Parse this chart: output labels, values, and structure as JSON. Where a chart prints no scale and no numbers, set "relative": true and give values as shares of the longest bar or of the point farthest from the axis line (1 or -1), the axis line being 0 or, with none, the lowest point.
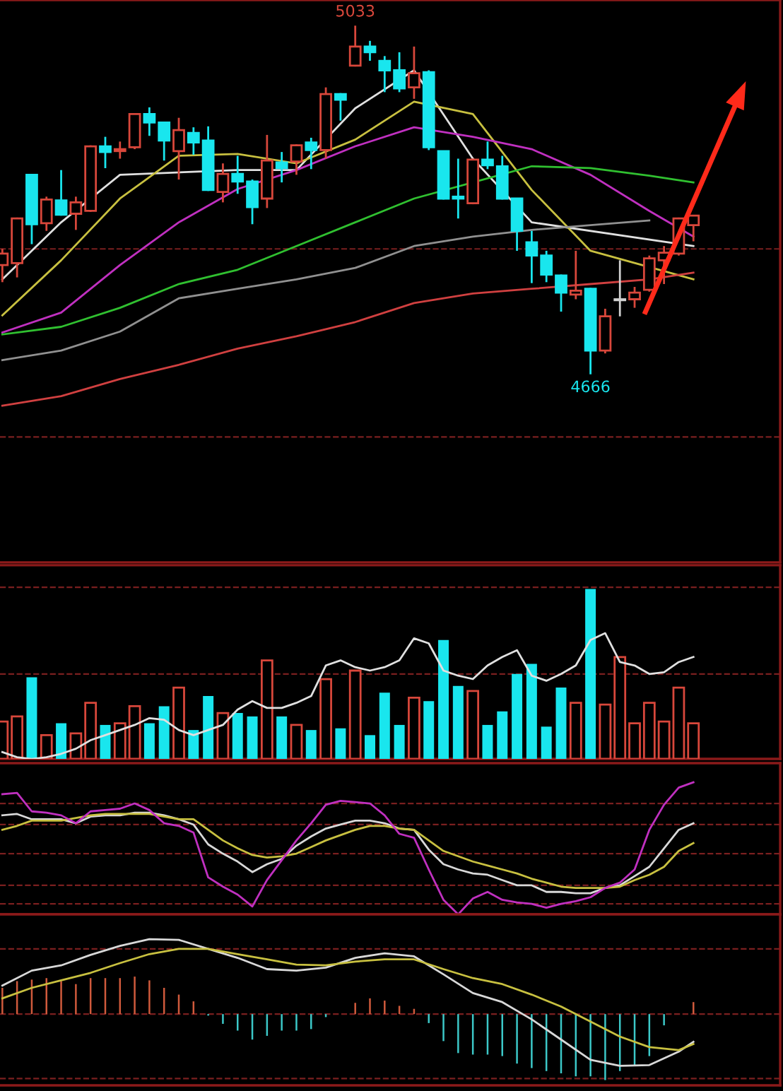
{
  "chart_data": [
    {
      "type": "candlestick",
      "tick_labels": false,
      "ylim": [
        4468,
        5060
      ],
      "categories": [
        null,
        null,
        null,
        null,
        null,
        null,
        null,
        null,
        null,
        null,
        null,
        null,
        null,
        null,
        null,
        null,
        null,
        null,
        null,
        null,
        null,
        null,
        null,
        null,
        null,
        null,
        null,
        null,
        null,
        null,
        null,
        null,
        null,
        null,
        null,
        null,
        null,
        null,
        null,
        null,
        null,
        null,
        null,
        null,
        null,
        null,
        null,
        null
      ],
      "ohlc": [
        [
          4781,
          4798,
          4763,
          4793
        ],
        [
          4783,
          4831,
          4768,
          4830
        ],
        [
          4876,
          4876,
          4803,
          4824
        ],
        [
          4825,
          4853,
          4817,
          4850
        ],
        [
          4849,
          4881,
          4833,
          4834
        ],
        [
          4835,
          4853,
          4818,
          4847
        ],
        [
          4838,
          4907,
          4837,
          4906
        ],
        [
          4906,
          4916,
          4883,
          4900
        ],
        [
          4901,
          4911,
          4893,
          4903
        ],
        [
          4905,
          4941,
          4903,
          4940
        ],
        [
          4940,
          4947,
          4917,
          4931
        ],
        [
          4931,
          4932,
          4891,
          4912
        ],
        [
          4901,
          4936,
          4871,
          4923
        ],
        [
          4920,
          4926,
          4897,
          4910
        ],
        [
          4912,
          4927,
          4859,
          4860
        ],
        [
          4858,
          4888,
          4847,
          4877
        ],
        [
          4877,
          4896,
          4856,
          4869
        ],
        [
          4869,
          4871,
          4824,
          4842
        ],
        [
          4851,
          4918,
          4841,
          4891
        ],
        [
          4889,
          4900,
          4868,
          4883
        ],
        [
          4890,
          4908,
          4876,
          4907
        ],
        [
          4910,
          4915,
          4882,
          4902
        ],
        [
          4902,
          4968,
          4893,
          4961
        ],
        [
          4961,
          4962,
          4933,
          4955
        ],
        [
          4991,
          5033,
          4990,
          5011
        ],
        [
          5011,
          5017,
          4996,
          5005
        ],
        [
          4996,
          5001,
          4963,
          4986
        ],
        [
          4986,
          5005,
          4963,
          4967
        ],
        [
          4968,
          5011,
          4956,
          4983
        ],
        [
          4984,
          4986,
          4902,
          4905
        ],
        [
          4901,
          4901,
          4850,
          4851
        ],
        [
          4853,
          4893,
          4830,
          4851
        ],
        [
          4846,
          4893,
          4845,
          4892
        ],
        [
          4892,
          4911,
          4882,
          4886
        ],
        [
          4885,
          4896,
          4850,
          4851
        ],
        [
          4851,
          4851,
          4796,
          4817
        ],
        [
          4805,
          4817,
          4762,
          4791
        ],
        [
          4791,
          4796,
          4763,
          4771
        ],
        [
          4770,
          4771,
          4732,
          4752
        ],
        [
          4750,
          4796,
          4745,
          4754
        ],
        [
          4756,
          4757,
          4666,
          4691
        ],
        [
          4691,
          4735,
          4688,
          4727
        ],
        [
          4744,
          4786,
          4727,
          4745
        ],
        [
          4745,
          4758,
          4736,
          4752
        ],
        [
          4755,
          4791,
          4753,
          4788
        ],
        [
          4786,
          4801,
          4761,
          4794
        ],
        [
          4793,
          4831,
          4791,
          4830
        ],
        [
          4823,
          4833,
          4806,
          4833
        ]
      ],
      "colors": [
        "#d8473b",
        "#d8473b",
        "#19e6ee",
        "#d8473b",
        "#19e6ee",
        "#d8473b",
        "#d8473b",
        "#19e6ee",
        "#d8473b",
        "#d8473b",
        "#19e6ee",
        "#19e6ee",
        "#d8473b",
        "#19e6ee",
        "#19e6ee",
        "#d8473b",
        "#19e6ee",
        "#19e6ee",
        "#d8473b",
        "#19e6ee",
        "#d8473b",
        "#19e6ee",
        "#d8473b",
        "#19e6ee",
        "#d8473b",
        "#19e6ee",
        "#19e6ee",
        "#19e6ee",
        "#d8473b",
        "#19e6ee",
        "#19e6ee",
        "#19e6ee",
        "#d8473b",
        "#19e6ee",
        "#19e6ee",
        "#19e6ee",
        "#19e6ee",
        "#19e6ee",
        "#19e6ee",
        "#d8473b",
        "#19e6ee",
        "#d8473b",
        "#d0d0d0",
        "#d8473b",
        "#d8473b",
        "#d8473b",
        "#d8473b",
        "#d8473b"
      ],
      "series": [
        {
          "type": "line",
          "color": "#e0e0e0",
          "values": [
            4766,
            null,
            null,
            null,
            4826,
            null,
            null,
            null,
            4876,
            null,
            null,
            null,
            null,
            null,
            null,
            null,
            4881,
            null,
            null,
            null,
            4881,
            null,
            null,
            null,
            4946,
            null,
            null,
            null,
            4986,
            null,
            null,
            null,
            4893,
            null,
            null,
            null,
            4826,
            null,
            null,
            null,
            null,
            null,
            null,
            null,
            null,
            null,
            null,
            4801
          ]
        },
        {
          "type": "line",
          "color": "#c8c040",
          "values": [
            4728,
            null,
            null,
            null,
            4786,
            null,
            null,
            null,
            4851,
            null,
            null,
            null,
            4896,
            null,
            null,
            null,
            4898,
            null,
            null,
            null,
            4888,
            null,
            null,
            null,
            4913,
            null,
            null,
            null,
            4953,
            null,
            null,
            null,
            4940,
            null,
            null,
            null,
            4860,
            null,
            null,
            null,
            4796,
            null,
            null,
            null,
            null,
            null,
            null,
            4766
          ]
        },
        {
          "type": "line",
          "color": "#c030c0",
          "values": [
            4710,
            null,
            null,
            null,
            4731,
            null,
            null,
            null,
            4781,
            null,
            null,
            null,
            4826,
            null,
            null,
            null,
            4861,
            null,
            null,
            null,
            4881,
            null,
            null,
            null,
            4906,
            null,
            null,
            null,
            4926,
            null,
            null,
            null,
            4916,
            null,
            null,
            null,
            4903,
            null,
            null,
            null,
            4876,
            null,
            null,
            null,
            4838,
            null,
            null,
            4811
          ]
        },
        {
          "type": "line",
          "color": "#30c030",
          "values": [
            4708,
            null,
            null,
            null,
            4716,
            null,
            null,
            null,
            4736,
            null,
            null,
            null,
            4761,
            null,
            null,
            null,
            4776,
            null,
            null,
            null,
            4801,
            null,
            null,
            null,
            4826,
            null,
            null,
            null,
            4851,
            null,
            null,
            null,
            null,
            null,
            null,
            null,
            4885,
            null,
            null,
            null,
            4883,
            null,
            null,
            null,
            4875,
            null,
            null,
            4868
          ]
        },
        {
          "type": "line",
          "color": "#909090",
          "values": [
            4681,
            null,
            null,
            null,
            4691,
            null,
            null,
            null,
            4711,
            null,
            null,
            null,
            4746,
            null,
            null,
            null,
            4756,
            null,
            null,
            null,
            4766,
            null,
            null,
            null,
            4778,
            null,
            null,
            null,
            4801,
            null,
            null,
            null,
            4811,
            null,
            null,
            null,
            4818,
            null,
            null,
            null,
            4823,
            null,
            null,
            null,
            4828,
            null,
            null,
            null
          ]
        },
        {
          "type": "line",
          "color": "#d04040",
          "values": [
            4633,
            null,
            null,
            null,
            4643,
            null,
            null,
            null,
            4661,
            null,
            null,
            null,
            4676,
            null,
            null,
            null,
            4693,
            null,
            null,
            null,
            4706,
            null,
            null,
            null,
            4721,
            null,
            null,
            null,
            4741,
            null,
            null,
            null,
            4751,
            null,
            null,
            null,
            4756,
            null,
            null,
            null,
            4761,
            null,
            null,
            null,
            4766,
            null,
            null,
            4773
          ]
        }
      ],
      "annotations": [
        {
          "text": "5033",
          "y": 5033
        },
        {
          "text": "4666",
          "y": 4666
        }
      ],
      "ref_lines": [
        {
          "axis": "y",
          "value": 4798,
          "color": "#7a1f1f",
          "line_style": "dashed"
        },
        {
          "axis": "y",
          "value": 4600,
          "color": "#7a1f1f",
          "line_style": "dashed"
        }
      ]
    },
    {
      "type": "bar",
      "relative": true,
      "tick_labels": false,
      "categories": [
        null,
        null,
        null,
        null,
        null,
        null,
        null,
        null,
        null,
        null,
        null,
        null,
        null,
        null,
        null,
        null,
        null,
        null,
        null,
        null,
        null,
        null,
        null,
        null,
        null,
        null,
        null,
        null,
        null,
        null,
        null,
        null,
        null,
        null,
        null,
        null,
        null,
        null,
        null,
        null,
        null,
        null,
        null,
        null,
        null,
        null,
        null,
        null
      ],
      "series": [
        {
          "type": "bar",
          "colors": [
            "#d8473b",
            "#d8473b",
            "#19e6ee",
            "#d8473b",
            "#19e6ee",
            "#d8473b",
            "#d8473b",
            "#19e6ee",
            "#d8473b",
            "#d8473b",
            "#19e6ee",
            "#19e6ee",
            "#d8473b",
            "#19e6ee",
            "#19e6ee",
            "#d8473b",
            "#19e6ee",
            "#19e6ee",
            "#d8473b",
            "#19e6ee",
            "#d8473b",
            "#19e6ee",
            "#d8473b",
            "#19e6ee",
            "#d8473b",
            "#19e6ee",
            "#19e6ee",
            "#19e6ee",
            "#d8473b",
            "#19e6ee",
            "#19e6ee",
            "#19e6ee",
            "#d8473b",
            "#19e6ee",
            "#19e6ee",
            "#19e6ee",
            "#19e6ee",
            "#19e6ee",
            "#19e6ee",
            "#d8473b",
            "#19e6ee",
            "#d8473b",
            "#d8473b",
            "#d8473b",
            "#d8473b",
            "#d8473b",
            "#d8473b",
            "#d8473b"
          ],
          "values": [
            0.22,
            0.25,
            0.48,
            0.14,
            0.21,
            0.15,
            0.33,
            0.2,
            0.21,
            0.31,
            0.21,
            0.31,
            0.42,
            0.17,
            0.37,
            0.27,
            0.27,
            0.25,
            0.58,
            0.25,
            0.2,
            0.17,
            0.47,
            0.18,
            0.52,
            0.14,
            0.39,
            0.2,
            0.36,
            0.34,
            0.7,
            0.43,
            0.4,
            0.2,
            0.28,
            0.5,
            0.56,
            0.19,
            0.42,
            0.33,
            1.0,
            0.32,
            0.6,
            0.21,
            0.33,
            0.22,
            0.42,
            0.21
          ]
        },
        {
          "type": "line",
          "color": "#e0e0e0",
          "values": [
            0.04,
            0.01,
            0.0,
            0.01,
            0.03,
            0.06,
            0.11,
            0.14,
            0.17,
            0.2,
            0.24,
            0.23,
            0.17,
            0.14,
            0.17,
            0.2,
            0.29,
            0.34,
            0.3,
            0.3,
            0.33,
            0.37,
            0.55,
            0.58,
            0.54,
            0.52,
            0.54,
            0.58,
            0.71,
            0.68,
            0.52,
            0.49,
            0.47,
            0.55,
            0.6,
            0.64,
            0.49,
            0.46,
            0.5,
            0.55,
            0.7,
            0.74,
            0.57,
            0.55,
            0.5,
            0.51,
            0.57,
            0.6
          ]
        }
      ],
      "ref_lines": [
        {
          "axis": "y",
          "value": 1.01,
          "color": "#7a1f1f",
          "line_style": "dashed"
        },
        {
          "axis": "y",
          "value": 0.5,
          "color": "#7a1f1f",
          "line_style": "dashed"
        }
      ]
    },
    {
      "type": "line",
      "relative": true,
      "tick_labels": false,
      "categories": [
        null,
        null,
        null,
        null,
        null,
        null,
        null,
        null,
        null,
        null,
        null,
        null,
        null,
        null,
        null,
        null,
        null,
        null,
        null,
        null,
        null,
        null,
        null,
        null,
        null,
        null,
        null,
        null,
        null,
        null,
        null,
        null,
        null,
        null,
        null,
        null,
        null,
        null,
        null,
        null,
        null,
        null,
        null,
        null,
        null,
        null,
        null,
        null
      ],
      "series": [
        {
          "color": "#d8d8d8",
          "values": [
            0.75,
            0.76,
            0.72,
            0.72,
            0.72,
            0.69,
            0.74,
            0.75,
            0.75,
            0.77,
            0.77,
            0.75,
            0.72,
            0.68,
            0.53,
            0.46,
            0.4,
            0.32,
            0.38,
            0.42,
            0.52,
            0.59,
            0.65,
            0.68,
            0.71,
            0.71,
            0.69,
            0.65,
            0.64,
            0.49,
            0.38,
            0.34,
            0.31,
            0.3,
            0.26,
            0.22,
            0.22,
            0.17,
            0.17,
            0.16,
            0.16,
            0.2,
            0.22,
            0.29,
            0.36,
            0.5,
            0.64,
            0.69
          ]
        },
        {
          "color": "#c8c040",
          "values": [
            0.64,
            0.67,
            0.71,
            0.71,
            0.71,
            0.73,
            0.75,
            0.76,
            0.76,
            0.76,
            0.76,
            0.74,
            0.72,
            0.72,
            0.64,
            0.56,
            0.5,
            0.45,
            0.43,
            0.44,
            0.46,
            0.51,
            0.56,
            0.6,
            0.64,
            0.67,
            0.67,
            0.65,
            0.64,
            0.56,
            0.48,
            0.44,
            0.4,
            0.37,
            0.34,
            0.31,
            0.27,
            0.24,
            0.21,
            0.2,
            0.2,
            0.2,
            0.21,
            0.26,
            0.3,
            0.36,
            0.48,
            0.54
          ]
        },
        {
          "color": "#c030c0",
          "values": [
            0.91,
            0.92,
            0.78,
            0.77,
            0.75,
            0.69,
            0.78,
            0.79,
            0.8,
            0.84,
            0.79,
            0.69,
            0.67,
            0.62,
            0.28,
            0.21,
            0.15,
            0.06,
            0.26,
            0.41,
            0.56,
            0.69,
            0.83,
            0.86,
            0.85,
            0.84,
            0.75,
            0.61,
            0.58,
            0.34,
            0.11,
            0.0,
            0.12,
            0.17,
            0.11,
            0.09,
            0.08,
            0.05,
            0.08,
            0.1,
            0.13,
            0.2,
            0.24,
            0.34,
            0.64,
            0.83,
            0.96,
            1.0
          ]
        }
      ],
      "ref_lines": [
        {
          "axis": "y",
          "value": 0.84,
          "color": "#7a1f1f",
          "line_style": "dashed"
        },
        {
          "axis": "y",
          "value": 0.68,
          "color": "#7a1f1f",
          "line_style": "dashed"
        },
        {
          "axis": "y",
          "value": 0.46,
          "color": "#7a1f1f",
          "line_style": "dashed"
        },
        {
          "axis": "y",
          "value": 0.22,
          "color": "#7a1f1f",
          "line_style": "dashed"
        },
        {
          "axis": "y",
          "value": 0.08,
          "color": "#7a1f1f",
          "line_style": "dashed"
        }
      ]
    },
    {
      "type": "bar",
      "relative": true,
      "tick_labels": false,
      "categories": [
        null,
        null,
        null,
        null,
        null,
        null,
        null,
        null,
        null,
        null,
        null,
        null,
        null,
        null,
        null,
        null,
        null,
        null,
        null,
        null,
        null,
        null,
        null,
        null,
        null,
        null,
        null,
        null,
        null,
        null,
        null,
        null,
        null,
        null,
        null,
        null,
        null,
        null,
        null,
        null,
        null,
        null,
        null,
        null,
        null,
        null,
        null,
        null
      ],
      "series": [
        {
          "type": "bar",
          "colors": [
            "#d05a3c",
            "#d05a3c",
            "#d05a3c",
            "#d05a3c",
            "#d05a3c",
            "#d05a3c",
            "#d05a3c",
            "#d05a3c",
            "#d05a3c",
            "#d05a3c",
            "#d05a3c",
            "#d05a3c",
            "#d05a3c",
            "#d05a3c",
            "#3cc8c8",
            "#3cc8c8",
            "#3cc8c8",
            "#3cc8c8",
            "#3cc8c8",
            "#3cc8c8",
            "#3cc8c8",
            "#3cc8c8",
            "#3cc8c8",
            "#d05a3c",
            "#d05a3c",
            "#d05a3c",
            "#d05a3c",
            "#d05a3c",
            "#d05a3c",
            "#3cc8c8",
            "#3cc8c8",
            "#3cc8c8",
            "#3cc8c8",
            "#3cc8c8",
            "#3cc8c8",
            "#3cc8c8",
            "#3cc8c8",
            "#3cc8c8",
            "#3cc8c8",
            "#3cc8c8",
            "#3cc8c8",
            "#3cc8c8",
            "#3cc8c8",
            "#3cc8c8",
            "#3cc8c8",
            "#3cc8c8",
            "#d05a3c",
            "#d05a3c"
          ],
          "values": [
            0.35,
            0.44,
            0.46,
            0.48,
            0.44,
            0.4,
            0.48,
            0.48,
            0.48,
            0.5,
            0.45,
            0.35,
            0.26,
            0.17,
            -0.02,
            -0.13,
            -0.22,
            -0.34,
            -0.29,
            -0.22,
            -0.22,
            -0.2,
            -0.04,
            0.0,
            0.15,
            0.21,
            0.18,
            0.11,
            0.07,
            -0.12,
            -0.36,
            -0.52,
            -0.54,
            -0.54,
            -0.56,
            -0.66,
            -0.72,
            -0.76,
            -0.79,
            -0.83,
            -0.83,
            -0.88,
            -0.76,
            -0.69,
            -0.56,
            -0.15,
            0.0,
            0.16
          ]
        },
        {
          "type": "line",
          "color": "#d8d8d8",
          "values": [
            0.38,
            null,
            0.58,
            null,
            0.65,
            null,
            0.79,
            null,
            0.91,
            null,
            1.0,
            null,
            0.99,
            null,
            0.87,
            null,
            0.75,
            null,
            0.6,
            null,
            0.58,
            null,
            0.62,
            null,
            0.75,
            null,
            0.81,
            null,
            0.77,
            null,
            0.53,
            null,
            0.28,
            null,
            0.16,
            null,
            -0.07,
            null,
            -0.34,
            null,
            -0.61,
            null,
            -0.69,
            null,
            -0.68,
            null,
            -0.5,
            -0.37
          ]
        },
        {
          "type": "line",
          "color": "#c8c040",
          "values": [
            0.21,
            null,
            0.35,
            null,
            0.45,
            null,
            0.55,
            null,
            0.68,
            null,
            0.8,
            null,
            0.87,
            null,
            0.87,
            null,
            0.8,
            null,
            0.73,
            null,
            0.66,
            null,
            0.65,
            null,
            0.7,
            null,
            0.73,
            null,
            0.73,
            null,
            0.6,
            null,
            0.48,
            null,
            0.4,
            null,
            0.26,
            null,
            0.1,
            null,
            -0.1,
            null,
            -0.3,
            null,
            -0.44,
            null,
            -0.48,
            -0.4
          ]
        }
      ],
      "ref_lines": [
        {
          "axis": "y",
          "value": 0.87,
          "color": "#7a1f1f",
          "line_style": "dashed"
        },
        {
          "axis": "y",
          "value": 0,
          "color": "#7a1f1f",
          "line_style": "dashed"
        },
        {
          "axis": "y",
          "value": -0.86,
          "color": "#7a1f1f",
          "line_style": "dashed"
        }
      ]
    }
  ]
}
